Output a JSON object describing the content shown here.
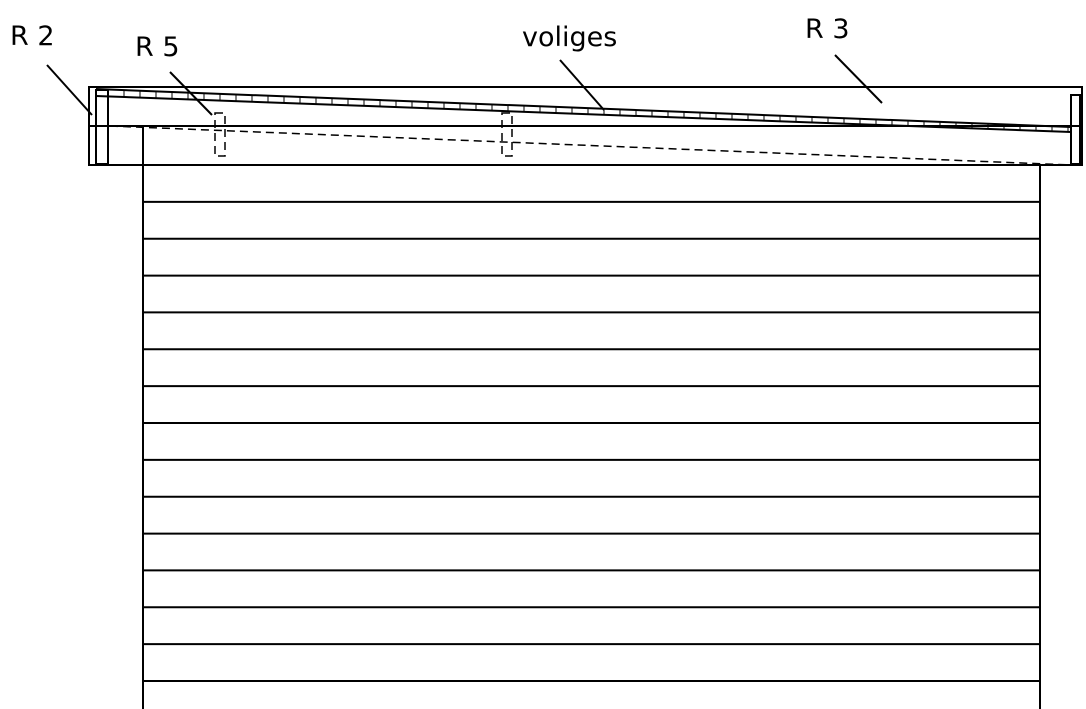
{
  "labels": {
    "r2": "R 2",
    "r5": "R 5",
    "voliges": "voliges",
    "r3": "R 3"
  },
  "wall_courses": 14,
  "colors": {
    "line": "#000000",
    "background": "#ffffff"
  }
}
